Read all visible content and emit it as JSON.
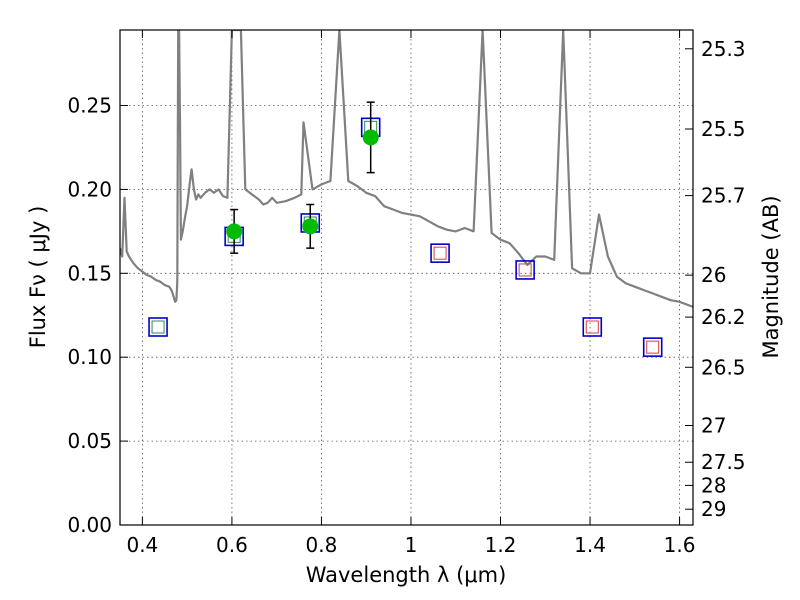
{
  "chart_data": {
    "type": "scatter",
    "title": "",
    "xlabel": "Wavelength  λ (μm)",
    "ylabel": "Flux  Fν  ( μJy )",
    "y2label": "Magnitude (AB)",
    "xlim": [
      0.35,
      1.63
    ],
    "ylim": [
      0.0,
      0.295
    ],
    "grid": true,
    "x_ticks": [
      0.4,
      0.6,
      0.8,
      1.0,
      1.2,
      1.4,
      1.6
    ],
    "x_tick_labels": [
      "0.4",
      "0.6",
      "0.8",
      "1",
      "1.2",
      "1.4",
      "1.6"
    ],
    "y_ticks": [
      0.0,
      0.05,
      0.1,
      0.15,
      0.2,
      0.25
    ],
    "y_tick_labels": [
      "0.00",
      "0.05",
      "0.10",
      "0.15",
      "0.20",
      "0.25"
    ],
    "mag_ticks": [
      {
        "label": "25.3",
        "flux": 0.2838
      },
      {
        "label": "25.5",
        "flux": 0.236
      },
      {
        "label": "25.7",
        "flux": 0.1963
      },
      {
        "label": "26",
        "flux": 0.1489
      },
      {
        "label": "26.2",
        "flux": 0.1239
      },
      {
        "label": "26.5",
        "flux": 0.094
      },
      {
        "label": "27",
        "flux": 0.0593
      },
      {
        "label": "27.5",
        "flux": 0.0374
      },
      {
        "label": "28",
        "flux": 0.0236
      },
      {
        "label": "29",
        "flux": 0.0094
      }
    ],
    "colors": {
      "sed": "#808080",
      "observed": "#00bb00",
      "model_box": "#0000cc",
      "inner_green": "#2e8b57",
      "inner_red": "#d04040",
      "errorbar": "#000000"
    },
    "series": [
      {
        "name": "",
        "kind": "sed-line",
        "x": [
          0.35,
          0.355,
          0.36,
          0.365,
          0.37,
          0.38,
          0.39,
          0.4,
          0.41,
          0.42,
          0.43,
          0.44,
          0.45,
          0.46,
          0.465,
          0.47,
          0.473,
          0.476,
          0.478,
          0.48,
          0.482,
          0.484,
          0.486,
          0.49,
          0.495,
          0.5,
          0.503,
          0.506,
          0.51,
          0.515,
          0.52,
          0.525,
          0.53,
          0.54,
          0.55,
          0.56,
          0.57,
          0.58,
          0.59,
          0.6,
          0.61,
          0.62,
          0.63,
          0.64,
          0.65,
          0.66,
          0.67,
          0.68,
          0.69,
          0.7,
          0.72,
          0.74,
          0.755,
          0.76,
          0.78,
          0.8,
          0.82,
          0.84,
          0.86,
          0.88,
          0.9,
          0.92,
          0.94,
          0.96,
          0.98,
          1.0,
          1.02,
          1.04,
          1.06,
          1.08,
          1.1,
          1.12,
          1.14,
          1.16,
          1.18,
          1.2,
          1.22,
          1.24,
          1.26,
          1.28,
          1.3,
          1.32,
          1.34,
          1.36,
          1.38,
          1.4,
          1.42,
          1.44,
          1.46,
          1.48,
          1.5,
          1.52,
          1.54,
          1.56,
          1.58,
          1.6,
          1.63
        ],
        "y": [
          0.165,
          0.16,
          0.195,
          0.163,
          0.16,
          0.156,
          0.153,
          0.151,
          0.149,
          0.148,
          0.146,
          0.145,
          0.143,
          0.142,
          0.14,
          0.136,
          0.133,
          0.134,
          0.145,
          0.295,
          0.295,
          0.24,
          0.17,
          0.175,
          0.183,
          0.19,
          0.197,
          0.204,
          0.212,
          0.2,
          0.194,
          0.197,
          0.195,
          0.198,
          0.2,
          0.198,
          0.2,
          0.196,
          0.195,
          0.295,
          0.295,
          0.295,
          0.2,
          0.198,
          0.196,
          0.194,
          0.191,
          0.192,
          0.195,
          0.192,
          0.193,
          0.195,
          0.197,
          0.24,
          0.2,
          0.203,
          0.205,
          0.295,
          0.205,
          0.202,
          0.198,
          0.196,
          0.19,
          0.188,
          0.186,
          0.185,
          0.184,
          0.181,
          0.178,
          0.176,
          0.175,
          0.177,
          0.175,
          0.295,
          0.174,
          0.17,
          0.168,
          0.162,
          0.155,
          0.16,
          0.16,
          0.158,
          0.295,
          0.153,
          0.15,
          0.15,
          0.185,
          0.16,
          0.148,
          0.144,
          0.142,
          0.14,
          0.138,
          0.136,
          0.134,
          0.133,
          0.13
        ]
      },
      {
        "name": "",
        "kind": "observed",
        "x": [
          0.605,
          0.775,
          0.91
        ],
        "y": [
          0.175,
          0.178,
          0.231
        ],
        "yerr": [
          0.013,
          0.013,
          0.021
        ]
      },
      {
        "name": "",
        "kind": "model-box",
        "x": [
          0.435,
          0.605,
          0.775,
          0.91,
          1.065,
          1.255,
          1.405,
          1.54
        ],
        "y": [
          0.118,
          0.172,
          0.18,
          0.237,
          0.162,
          0.152,
          0.118,
          0.106
        ],
        "inner": [
          "green",
          "green",
          "green",
          "green",
          "red",
          "red",
          "red",
          "red"
        ]
      }
    ]
  }
}
